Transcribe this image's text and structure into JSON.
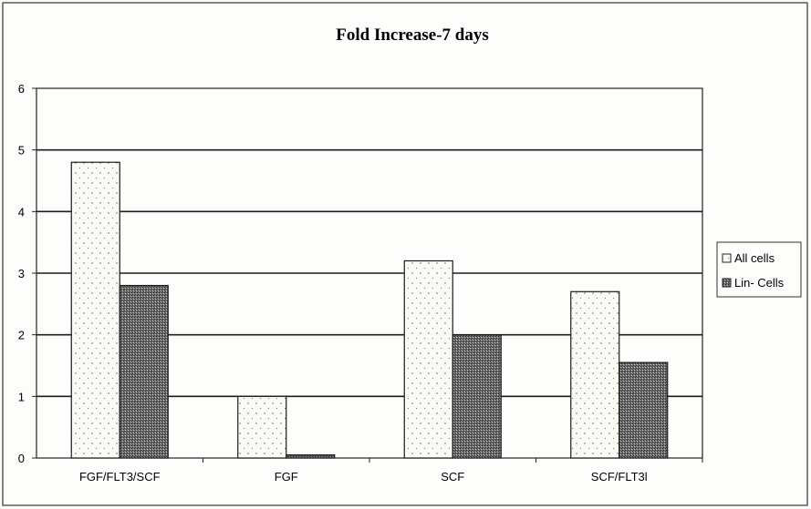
{
  "chart_data": {
    "type": "bar",
    "title": "Fold Increase-7 days",
    "xlabel": "",
    "ylabel": "",
    "categories": [
      "FGF/FLT3/SCF",
      "FGF",
      "SCF",
      "SCF/FLT3l"
    ],
    "series": [
      {
        "name": "All cells",
        "values": [
          4.8,
          1.0,
          3.2,
          2.7
        ],
        "color": "#fbfbf6"
      },
      {
        "name": "Lin- Cells",
        "values": [
          2.8,
          0.05,
          2.0,
          1.55
        ],
        "color": "#777777"
      }
    ],
    "ylim": [
      0,
      6
    ],
    "yticks": [
      "0",
      "1",
      "2",
      "3",
      "4",
      "5",
      "6"
    ],
    "grid": true,
    "legend_position": "right"
  }
}
